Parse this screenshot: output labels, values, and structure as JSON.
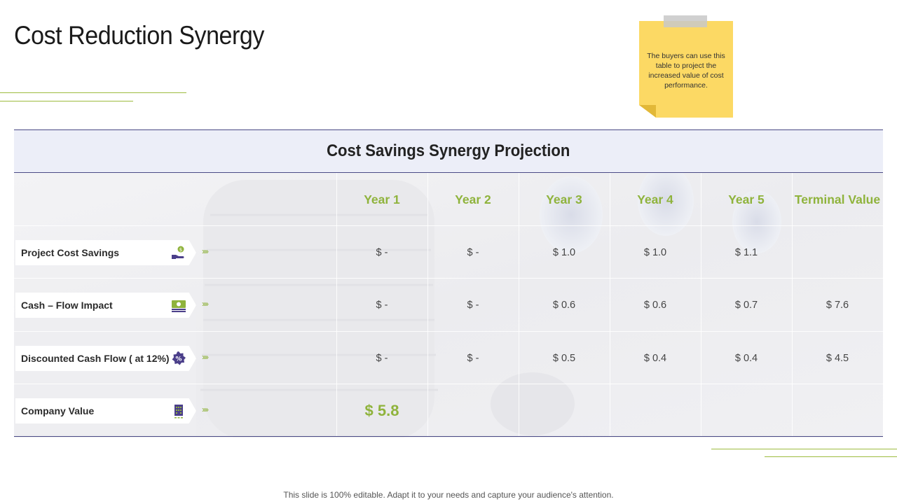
{
  "title": "Cost Reduction Synergy",
  "note": "The buyers can use this table to project the increased value of cost performance.",
  "table": {
    "heading": "Cost Savings Synergy Projection",
    "columns": [
      "Year 1",
      "Year 2",
      "Year 3",
      "Year 4",
      "Year 5",
      "Terminal Value"
    ],
    "rows": [
      {
        "label": "Project Cost Savings",
        "icon": "hand-money-icon",
        "values": [
          "$ -",
          "$ -",
          "$ 1.0",
          "$ 1.0",
          "$ 1.1",
          ""
        ]
      },
      {
        "label": "Cash – Flow Impact",
        "icon": "cash-stack-icon",
        "values": [
          "$ -",
          "$ -",
          "$ 0.6",
          "$ 0.6",
          "$ 0.7",
          "$ 7.6"
        ]
      },
      {
        "label": "Discounted Cash Flow ( at 12%)",
        "icon": "percent-badge-icon",
        "values": [
          "$ -",
          "$ -",
          "$ 0.5",
          "$ 0.4",
          "$ 0.4",
          "$ 4.5"
        ]
      },
      {
        "label": "Company Value",
        "icon": "building-icon",
        "values": [
          "$ 5.8"
        ]
      }
    ]
  },
  "chevron_glyph": "››››",
  "footer": "This slide is 100% editable. Adapt it to your needs and capture your audience's attention.",
  "colors": {
    "accent_green": "#8fb33c",
    "header_band": "#eceef8",
    "border_navy": "#4a4a85",
    "sticky_note": "#fcd964",
    "icon_purple": "#4b3f8a"
  }
}
